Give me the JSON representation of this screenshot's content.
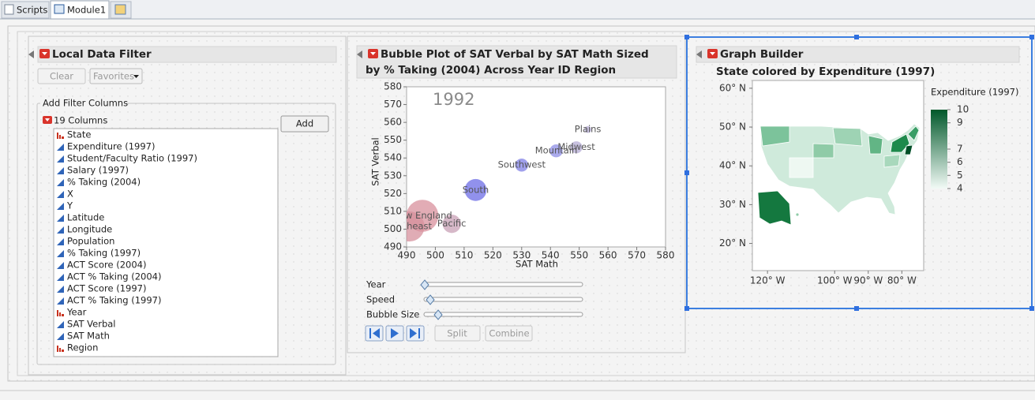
{
  "tabs": [
    "Scripts",
    "Module1"
  ],
  "filter": {
    "title": "Local Data Filter",
    "clear": "Clear",
    "favorites": "Favorites",
    "group_label": "Add Filter Columns",
    "count_label": "19 Columns",
    "add": "Add",
    "columns": [
      {
        "name": "State",
        "modeling_type": "nominal"
      },
      {
        "name": "Expenditure (1997)",
        "modeling_type": "continuous"
      },
      {
        "name": "Student/Faculty Ratio (1997)",
        "modeling_type": "continuous"
      },
      {
        "name": "Salary (1997)",
        "modeling_type": "continuous"
      },
      {
        "name": "% Taking (2004)",
        "modeling_type": "continuous"
      },
      {
        "name": "X",
        "modeling_type": "continuous"
      },
      {
        "name": "Y",
        "modeling_type": "continuous"
      },
      {
        "name": "Latitude",
        "modeling_type": "continuous"
      },
      {
        "name": "Longitude",
        "modeling_type": "continuous"
      },
      {
        "name": "Population",
        "modeling_type": "continuous"
      },
      {
        "name": "% Taking (1997)",
        "modeling_type": "continuous"
      },
      {
        "name": "ACT Score (2004)",
        "modeling_type": "continuous"
      },
      {
        "name": "ACT % Taking (2004)",
        "modeling_type": "continuous"
      },
      {
        "name": "ACT Score (1997)",
        "modeling_type": "continuous"
      },
      {
        "name": "ACT % Taking (1997)",
        "modeling_type": "continuous"
      },
      {
        "name": "Year",
        "modeling_type": "nominal"
      },
      {
        "name": "SAT Verbal",
        "modeling_type": "continuous"
      },
      {
        "name": "SAT Math",
        "modeling_type": "continuous"
      },
      {
        "name": "Region",
        "modeling_type": "nominal"
      }
    ]
  },
  "bubble_controls": {
    "sliders": [
      "Year",
      "Speed",
      "Bubble Size"
    ],
    "split": "Split",
    "combine": "Combine"
  },
  "graph_builder": {
    "title": "Graph Builder"
  },
  "chart_data": [
    {
      "type": "bubble",
      "title": [
        "Bubble Plot of SAT Verbal by SAT Math Sized",
        "by % Taking (2004) Across Year ID Region"
      ],
      "frame_label": "1992",
      "x_label": "SAT Math",
      "y_label": "SAT Verbal",
      "categories": [
        "Plains",
        "Midwest",
        "Mountain",
        "Southwest",
        "South",
        "New England",
        "Northeast",
        "Pacific"
      ],
      "x": [
        553,
        549,
        542,
        530,
        514,
        495.5,
        491,
        505.7
      ],
      "values": [
        556,
        546,
        544,
        536,
        522,
        507.5,
        501.5,
        503
      ],
      "sizes": [
        4,
        12,
        14,
        14,
        40,
        85,
        75,
        28
      ],
      "colors": [
        "#b7aed6",
        "#b5acd6",
        "#8e8ee6",
        "#8080e6",
        "#6c6ce6",
        "#d8909c",
        "#d6909c",
        "#c8a0b6"
      ],
      "xlim": [
        490,
        580
      ],
      "xticks": [
        490,
        500,
        510,
        520,
        530,
        540,
        550,
        560,
        570,
        580
      ],
      "ylim": [
        490,
        580
      ],
      "yticks": [
        490,
        500,
        510,
        520,
        530,
        540,
        550,
        560,
        570,
        580
      ]
    },
    {
      "type": "map",
      "title": "State colored by Expenditure (1997)",
      "legend_title": "Expenditure (1997)",
      "xlim": [
        -124.5,
        -73.5
      ],
      "xticks": [
        {
          "value": -120,
          "label": "120° W"
        },
        {
          "value": -100,
          "label": "100° W"
        },
        {
          "value": -90,
          "label": "90° W"
        },
        {
          "value": -80,
          "label": "80° W"
        }
      ],
      "ylim": [
        13,
        62
      ],
      "yticks": [
        {
          "value": 20,
          "label": "20° N"
        },
        {
          "value": 30,
          "label": "30° N"
        },
        {
          "value": 40,
          "label": "40° N"
        },
        {
          "value": 50,
          "label": "50° N"
        },
        {
          "value": 60,
          "label": "60° N"
        }
      ],
      "color_lim": [
        4,
        10
      ],
      "color_ticks": [
        10,
        9,
        7,
        6,
        5,
        4
      ],
      "colors": [
        "#f2faf6",
        "#00582a"
      ]
    }
  ]
}
